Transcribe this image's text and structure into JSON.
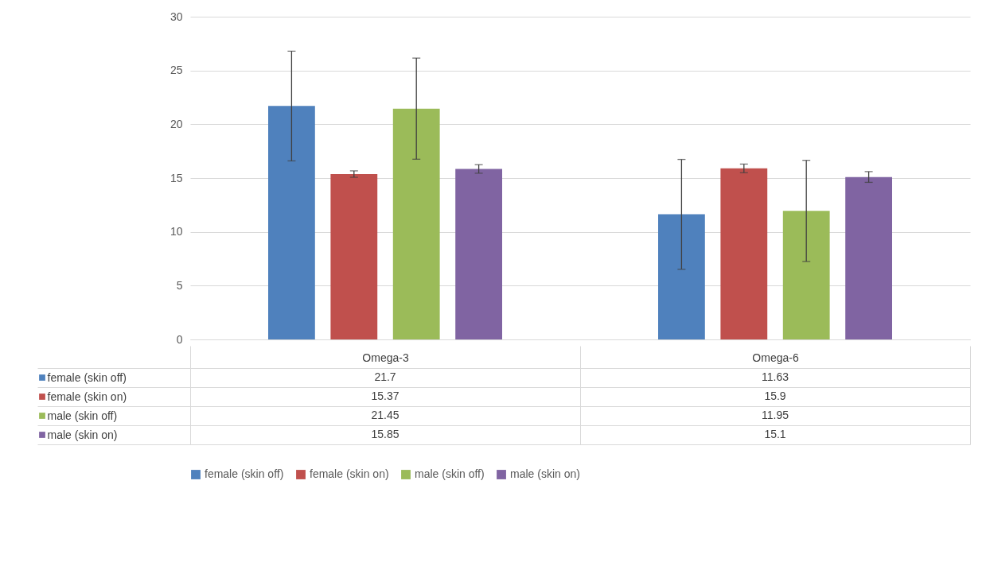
{
  "chart_data": {
    "type": "bar",
    "categories": [
      "Omega-3",
      "Omega-6"
    ],
    "series": [
      {
        "name": "female (skin off)",
        "color": "#4f81bd",
        "values": [
          21.7,
          11.63
        ],
        "errors": [
          5.1,
          5.1
        ]
      },
      {
        "name": "female (skin on)",
        "color": "#c0504d",
        "values": [
          15.37,
          15.9
        ],
        "errors": [
          0.3,
          0.4
        ]
      },
      {
        "name": "male (skin off)",
        "color": "#9bbb59",
        "values": [
          21.45,
          11.95
        ],
        "errors": [
          4.7,
          4.7
        ]
      },
      {
        "name": "male (skin on)",
        "color": "#8064a2",
        "values": [
          15.85,
          15.1
        ],
        "errors": [
          0.4,
          0.5
        ]
      }
    ],
    "ylim": [
      0,
      30
    ],
    "yticks": [
      0,
      5,
      10,
      15,
      20,
      25,
      30
    ],
    "grid": "y",
    "legend": "bottom",
    "data_labels": true
  }
}
